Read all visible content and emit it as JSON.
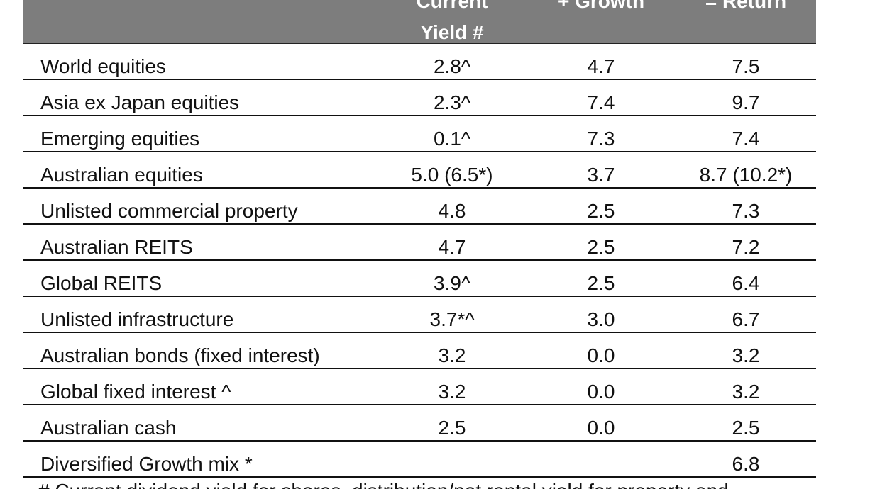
{
  "table": {
    "headers": {
      "current_yield_line1": "Current",
      "current_yield_line2": "Yield #",
      "growth": "+ Growth",
      "return": "= Return"
    },
    "rows": [
      {
        "asset": "World equities",
        "yield": "2.8^",
        "growth": "4.7",
        "return": "7.5"
      },
      {
        "asset": "Asia ex Japan equities",
        "yield": "2.3^",
        "growth": "7.4",
        "return": "9.7"
      },
      {
        "asset": "Emerging equities",
        "yield": "0.1^",
        "growth": "7.3",
        "return": "7.4"
      },
      {
        "asset": "Australian equities",
        "yield": "5.0 (6.5*)",
        "growth": "3.7",
        "return": "8.7 (10.2*)"
      },
      {
        "asset": "Unlisted commercial property",
        "yield": "4.8",
        "growth": "2.5",
        "return": "7.3"
      },
      {
        "asset": "Australian REITS",
        "yield": "4.7",
        "growth": "2.5",
        "return": "7.2"
      },
      {
        "asset": "Global REITS",
        "yield": "3.9^",
        "growth": "2.5",
        "return": "6.4"
      },
      {
        "asset": "Unlisted infrastructure",
        "yield": "3.7*^",
        "growth": "3.0",
        "return": "6.7"
      },
      {
        "asset": "Australian bonds (fixed interest)",
        "yield": "3.2",
        "growth": "0.0",
        "return": "3.2"
      },
      {
        "asset": "Global fixed interest ^",
        "yield": "3.2",
        "growth": "0.0",
        "return": "3.2"
      },
      {
        "asset": "Australian cash",
        "yield": "2.5",
        "growth": "0.0",
        "return": "2.5"
      },
      {
        "asset": "Diversified Growth mix *",
        "yield": "",
        "growth": "",
        "return": "6.8"
      }
    ]
  },
  "footnote": "# Current dividend yield for shares, distribution/net rental yield for property and"
}
